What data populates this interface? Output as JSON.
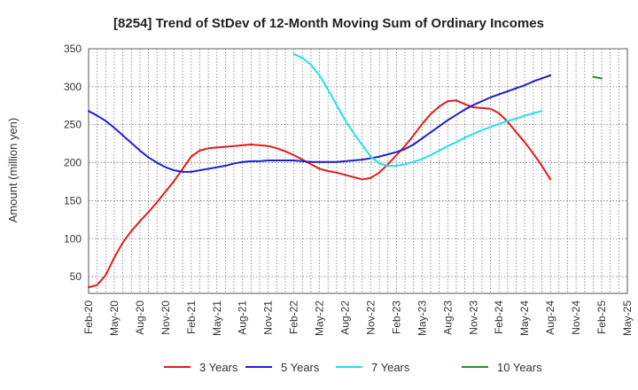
{
  "chart_data": {
    "type": "line",
    "title": "[8254]  Trend of StDev of 12-Month Moving Sum of Ordinary Incomes",
    "xlabel": "",
    "ylabel": "Amount (million yen)",
    "ylim": [
      28,
      350
    ],
    "yticks": [
      50,
      100,
      150,
      200,
      250,
      300,
      350
    ],
    "x_tick_labels": [
      "Feb-20",
      "May-20",
      "Aug-20",
      "Nov-20",
      "Feb-21",
      "May-21",
      "Aug-21",
      "Nov-21",
      "Feb-22",
      "May-22",
      "Aug-22",
      "Nov-22",
      "Feb-23",
      "May-23",
      "Aug-23",
      "Nov-23",
      "Feb-24",
      "May-24",
      "Aug-24",
      "Nov-24",
      "Feb-25",
      "May-25"
    ],
    "grid": true,
    "legend_position": "bottom",
    "series": [
      {
        "name": "3 Years",
        "color": "#e31a1c",
        "start": "Feb-20",
        "values": [
          36,
          39,
          52,
          75,
          95,
          110,
          123,
          135,
          148,
          162,
          176,
          192,
          208,
          216,
          219,
          220,
          221,
          222,
          223,
          224,
          223,
          222,
          219,
          215,
          210,
          204,
          198,
          192,
          189,
          187,
          184,
          181,
          178,
          180,
          187,
          198,
          210,
          222,
          236,
          251,
          264,
          274,
          281,
          282,
          277,
          273,
          272,
          271,
          265,
          254,
          240,
          227,
          212,
          196,
          178
        ]
      },
      {
        "name": "5 Years",
        "color": "#1f1fcc",
        "start": "Feb-20",
        "values": [
          268,
          262,
          255,
          246,
          236,
          226,
          216,
          207,
          200,
          194,
          190,
          188,
          188,
          190,
          192,
          194,
          196,
          199,
          201,
          202,
          202,
          203,
          203,
          203,
          203,
          202,
          201,
          201,
          201,
          201,
          202,
          203,
          204,
          206,
          208,
          211,
          214,
          218,
          224,
          232,
          240,
          248,
          256,
          263,
          270,
          276,
          281,
          286,
          290,
          294,
          298,
          302,
          307,
          311,
          315
        ]
      },
      {
        "name": "7 Years",
        "color": "#22e0e8",
        "start": "Feb-22",
        "values": [
          343,
          338,
          329,
          315,
          296,
          276,
          256,
          239,
          223,
          208,
          199,
          196,
          196,
          198,
          201,
          205,
          210,
          216,
          222,
          227,
          233,
          238,
          243,
          247,
          251,
          255,
          258,
          262,
          265,
          268
        ]
      },
      {
        "name": "10 Years",
        "color": "#2a8a2a",
        "start": "Jan-25",
        "values": [
          313,
          311
        ]
      }
    ]
  }
}
